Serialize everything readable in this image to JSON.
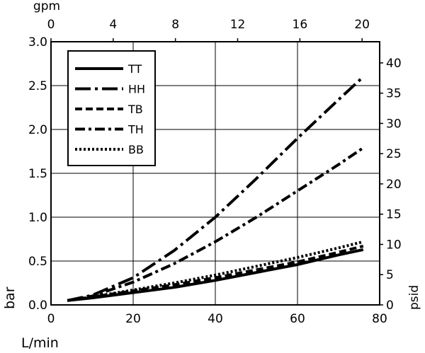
{
  "chart_data": {
    "type": "line",
    "x_axis": {
      "label": "L/min",
      "lim": [
        0,
        80
      ],
      "ticks": [
        "0",
        "20",
        "40",
        "60",
        "80"
      ]
    },
    "x2_axis": {
      "label": "gpm",
      "lim": [
        0,
        21.13
      ],
      "ticks": [
        "0",
        "4",
        "8",
        "12",
        "16",
        "20"
      ]
    },
    "y_axis": {
      "label": "bar",
      "lim": [
        0,
        3.0
      ],
      "ticks": [
        "0.0",
        "0.5",
        "1.0",
        "1.5",
        "2.0",
        "2.5",
        "3.0"
      ]
    },
    "y2_axis": {
      "label": "psid",
      "lim": [
        0,
        43.5
      ],
      "ticks": [
        "0",
        "5",
        "10",
        "15",
        "20",
        "25",
        "30",
        "35",
        "40"
      ]
    },
    "grid": true,
    "legend_position": "top-left",
    "series": [
      {
        "name": "TT",
        "style": "solid",
        "x": [
          4,
          10,
          20,
          30,
          40,
          50,
          60,
          70,
          76
        ],
        "y": [
          0.05,
          0.08,
          0.14,
          0.2,
          0.28,
          0.37,
          0.46,
          0.57,
          0.63
        ]
      },
      {
        "name": "HH",
        "style": "long-dash-dot",
        "x": [
          4,
          10,
          20,
          30,
          40,
          50,
          60,
          70,
          76
        ],
        "y": [
          0.05,
          0.11,
          0.31,
          0.62,
          1.0,
          1.44,
          1.9,
          2.34,
          2.6
        ]
      },
      {
        "name": "TB",
        "style": "dashed",
        "x": [
          4,
          10,
          20,
          30,
          40,
          50,
          60,
          70,
          76
        ],
        "y": [
          0.05,
          0.09,
          0.16,
          0.23,
          0.31,
          0.4,
          0.49,
          0.6,
          0.67
        ]
      },
      {
        "name": "TH",
        "style": "dash-dot",
        "x": [
          4,
          10,
          20,
          30,
          40,
          50,
          60,
          70,
          76
        ],
        "y": [
          0.05,
          0.1,
          0.26,
          0.47,
          0.72,
          1.0,
          1.3,
          1.6,
          1.79
        ]
      },
      {
        "name": "BB",
        "style": "dotted",
        "x": [
          4,
          10,
          20,
          30,
          40,
          50,
          60,
          70,
          76
        ],
        "y": [
          0.05,
          0.09,
          0.17,
          0.25,
          0.34,
          0.44,
          0.54,
          0.65,
          0.72
        ]
      }
    ]
  }
}
